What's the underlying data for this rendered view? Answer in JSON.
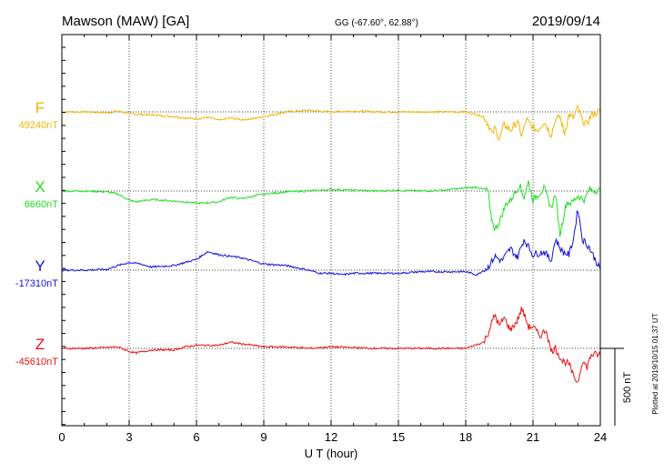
{
  "header": {
    "station": "Mawson (MAW)  [GA]",
    "coords": "GG (-67.60°,  62.88°)",
    "date": "2019/09/14"
  },
  "footnote": "Plotted at 2019/10/15 01:37 UT",
  "scale_bar": {
    "label": "500 nT",
    "value_nT": 500
  },
  "chart_data": {
    "type": "line",
    "title": "Mawson (MAW)  [GA]",
    "xlabel": "U T (hour)",
    "ylabel": "",
    "xlim": [
      0,
      24
    ],
    "x_ticks": [
      "0",
      "3",
      "6",
      "9",
      "12",
      "15",
      "18",
      "21",
      "24"
    ],
    "grid": true,
    "colors": {
      "F": "#f5b400",
      "X": "#22dd22",
      "Y": "#1111dd",
      "Z": "#ee1111"
    },
    "series": [
      {
        "name": "F",
        "baseline_label": "49240nT",
        "baseline_nT": 49240,
        "x": [
          0,
          1,
          2,
          2.5,
          3,
          3.3,
          4,
          5,
          5.5,
          6,
          6.5,
          7,
          7.5,
          8,
          8.5,
          9,
          10,
          11,
          12,
          13,
          14,
          15,
          16,
          17,
          18,
          18.8,
          19,
          19.2,
          19.3,
          19.5,
          19.7,
          20,
          20.3,
          20.5,
          20.7,
          21,
          21.2,
          21.5,
          21.8,
          22,
          22.2,
          22.4,
          22.6,
          22.8,
          23,
          23.2,
          23.4,
          23.6,
          23.8,
          24
        ],
        "values": [
          0,
          0,
          -5,
          5,
          -10,
          -15,
          -20,
          -30,
          -40,
          -45,
          -35,
          -55,
          -40,
          -50,
          -45,
          -30,
          0,
          10,
          0,
          5,
          0,
          0,
          0,
          0,
          0,
          -30,
          -80,
          -150,
          -100,
          -180,
          -80,
          -120,
          -60,
          -160,
          -50,
          -100,
          -120,
          -60,
          -150,
          -50,
          -30,
          -140,
          -20,
          -40,
          30,
          -60,
          -80,
          -20,
          -10,
          10
        ]
      },
      {
        "name": "X",
        "baseline_label": "6660nT",
        "baseline_nT": 6660,
        "x": [
          0,
          1,
          2,
          2.5,
          3,
          3.3,
          4,
          5,
          5.5,
          6,
          7,
          7.5,
          8,
          9,
          10,
          11,
          12,
          13,
          14,
          15,
          16,
          17,
          18,
          18.5,
          19,
          19.1,
          19.3,
          19.5,
          19.8,
          20,
          20.4,
          20.6,
          20.8,
          21,
          21.5,
          21.8,
          22,
          22.2,
          22.5,
          22.7,
          23,
          23.3,
          23.5,
          24
        ],
        "values": [
          0,
          0,
          -5,
          -20,
          -60,
          -70,
          -55,
          -65,
          -70,
          -80,
          -70,
          -40,
          -50,
          -20,
          -5,
          0,
          10,
          5,
          0,
          5,
          0,
          5,
          20,
          25,
          0,
          -150,
          -250,
          -200,
          -80,
          -60,
          40,
          -40,
          60,
          -60,
          20,
          -110,
          -20,
          -280,
          -70,
          -80,
          -30,
          -60,
          10,
          0
        ]
      },
      {
        "name": "Y",
        "baseline_label": "-17310nT",
        "baseline_nT": -17310,
        "x": [
          0,
          1,
          2,
          2.5,
          3,
          3.5,
          4,
          5,
          6,
          6.5,
          7,
          7.5,
          8,
          9,
          10,
          11,
          11.5,
          12,
          12.5,
          13,
          14,
          15,
          16,
          17,
          18,
          18.5,
          19,
          19.3,
          19.6,
          20,
          20.3,
          20.6,
          21,
          21.5,
          21.8,
          22,
          22.3,
          22.6,
          22.8,
          23,
          23.2,
          23.5,
          23.8,
          24
        ],
        "values": [
          0,
          0,
          5,
          30,
          50,
          40,
          20,
          30,
          70,
          120,
          100,
          90,
          80,
          40,
          30,
          0,
          -20,
          -20,
          -30,
          -20,
          -20,
          -20,
          -10,
          -10,
          -10,
          -30,
          20,
          90,
          60,
          140,
          80,
          200,
          100,
          120,
          60,
          200,
          120,
          100,
          200,
          400,
          200,
          150,
          60,
          0
        ]
      },
      {
        "name": "Z",
        "baseline_label": "-45610nT",
        "baseline_nT": -45610,
        "x": [
          0,
          1,
          2,
          2.5,
          3,
          3.3,
          4,
          5,
          5.5,
          6,
          7,
          7.5,
          8,
          9,
          10,
          11,
          12,
          13,
          14,
          15,
          16,
          17,
          18,
          18.8,
          19,
          19.3,
          19.5,
          19.7,
          20,
          20.3,
          20.5,
          20.8,
          21,
          21.3,
          21.6,
          21.8,
          22,
          22.3,
          22.6,
          22.8,
          23,
          23.2,
          23.4,
          23.6,
          24
        ],
        "values": [
          0,
          0,
          5,
          10,
          -20,
          -30,
          -10,
          -10,
          10,
          20,
          20,
          40,
          30,
          10,
          10,
          0,
          10,
          5,
          0,
          0,
          0,
          0,
          0,
          40,
          100,
          220,
          140,
          200,
          120,
          180,
          260,
          140,
          140,
          80,
          120,
          -20,
          0,
          -80,
          -100,
          -180,
          -220,
          -80,
          -120,
          -40,
          -40
        ]
      }
    ]
  }
}
